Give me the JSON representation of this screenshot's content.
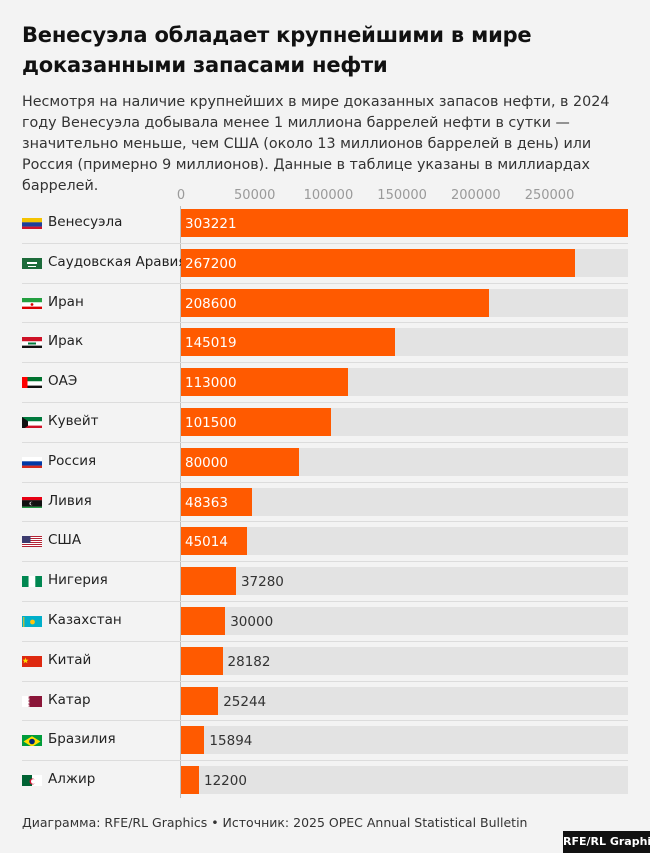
{
  "header": {
    "title": "Венесуэла обладает крупнейшими в мире доказанными запасами нефти",
    "subtitle": "Несмотря на наличие крупнейших в мире доказанных запасов нефти, в 2024 году Венесуэла добывала менее 1 миллиона баррелей нефти в сутки — значительно меньше, чем США (около 13 миллионов баррелей в день) или Россия (примерно 9 миллионов). Данные в таблице указаны в миллиардах баррелей."
  },
  "colors": {
    "bar": "#ff5a00",
    "track": "#e3e3e3",
    "background": "#f3f3f3"
  },
  "chart_data": {
    "type": "bar",
    "orientation": "horizontal",
    "categories": [
      "Венесуэла",
      "Саудовская Аравия",
      "Иран",
      "Ирак",
      "ОАЭ",
      "Кувейт",
      "Россия",
      "Ливия",
      "США",
      "Нигерия",
      "Казахстан",
      "Китай",
      "Катар",
      "Бразилия",
      "Алжир"
    ],
    "values": [
      303221,
      267200,
      208600,
      145019,
      113000,
      101500,
      80000,
      48363,
      45014,
      37280,
      30000,
      28182,
      25244,
      15894,
      12200
    ],
    "value_labels": [
      "303221",
      "267200",
      "208600",
      "145019",
      "113000",
      "101500",
      "80000",
      "48363",
      "45014",
      "37280",
      "30000",
      "28182",
      "25244",
      "15894",
      "12200"
    ],
    "xticks": [
      0,
      50000,
      100000,
      150000,
      200000,
      250000
    ],
    "xtick_labels": [
      "0",
      "50000",
      "100000",
      "150000",
      "200000",
      "250000"
    ],
    "xlim": [
      0,
      303221
    ],
    "flags": [
      "venezuela-flag",
      "saudi-arabia-flag",
      "iran-flag",
      "iraq-flag",
      "uae-flag",
      "kuwait-flag",
      "russia-flag",
      "libya-flag",
      "usa-flag",
      "nigeria-flag",
      "kazakhstan-flag",
      "china-flag",
      "qatar-flag",
      "brazil-flag",
      "algeria-flag"
    ]
  },
  "footer": {
    "credit": "Диаграмма: RFE/RL Graphics • Источник: 2025 OPEC Annual Statistical Bulletin",
    "logo": "RFE/RL Graphics"
  }
}
